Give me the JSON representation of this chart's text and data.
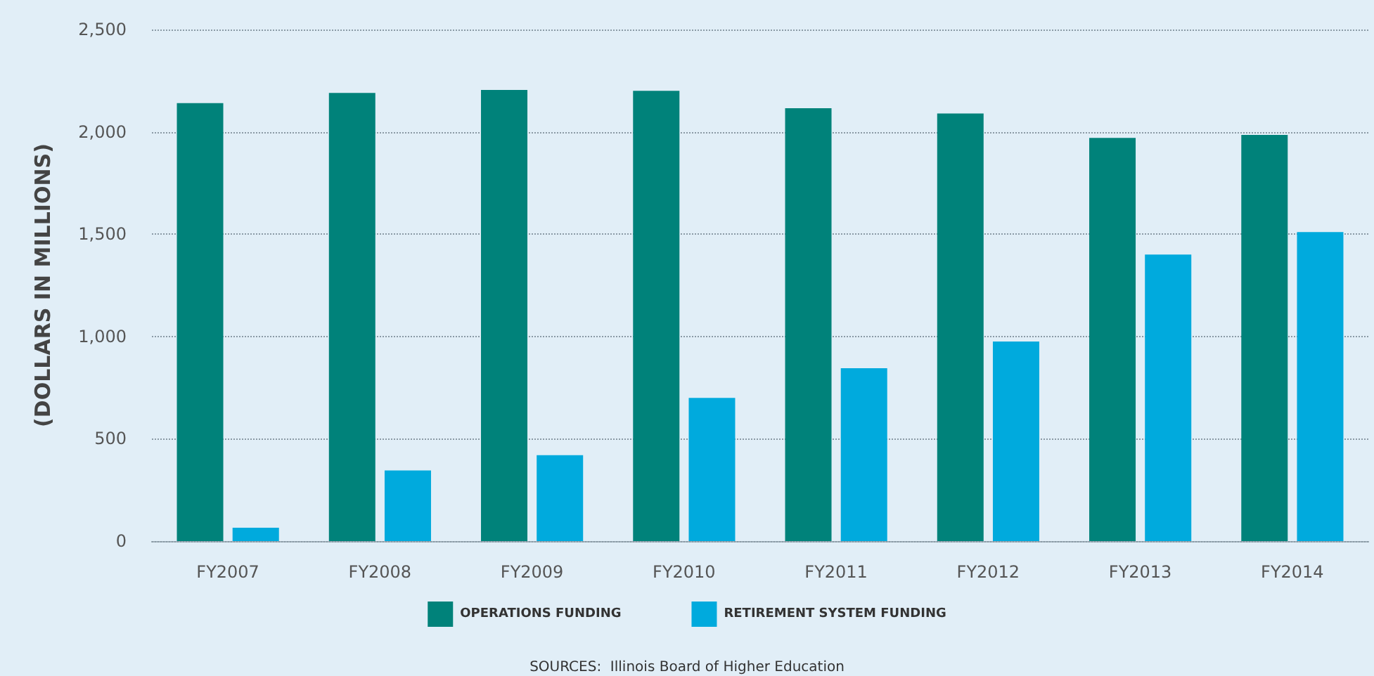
{
  "chart_data": {
    "type": "bar",
    "ylabel": "(DOLLARS IN MILLIONS)",
    "categories": [
      "FY2007",
      "FY2008",
      "FY2009",
      "FY2010",
      "FY2011",
      "FY2012",
      "FY2013",
      "FY2014"
    ],
    "series": [
      {
        "name": "OPERATIONS FUNDING",
        "color": "#00827a",
        "values": [
          2140,
          2190,
          2205,
          2200,
          2115,
          2090,
          1970,
          1985
        ]
      },
      {
        "name": "RETIREMENT SYSTEM FUNDING",
        "color": "#00aadd",
        "values": [
          65,
          345,
          420,
          700,
          845,
          975,
          1400,
          1510
        ]
      }
    ],
    "ylim": [
      0,
      2500
    ],
    "yticks": [
      0,
      500,
      {
        "value": 1000,
        "label": "1,000"
      },
      {
        "value": 1500,
        "label": "1,500"
      },
      {
        "value": 2000,
        "label": "2,000"
      },
      {
        "value": 2500,
        "label": "2,500"
      }
    ],
    "grid": "y",
    "legend": "bottom",
    "annotations": [
      "SOURCES:  Illinois Board of Higher Education"
    ]
  }
}
